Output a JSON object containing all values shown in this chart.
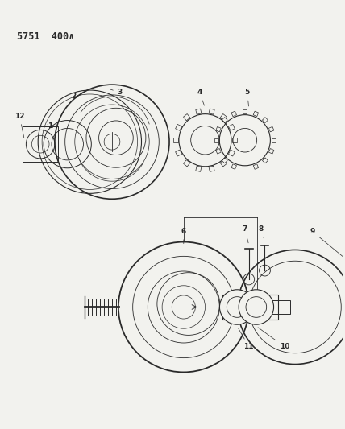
{
  "bg_color": "#f2f2ee",
  "line_color": "#2a2a2a",
  "title_text": "5751  400∧",
  "title_fontsize": 8.5,
  "fig_width": 4.28,
  "fig_height": 5.33,
  "dpi": 100
}
